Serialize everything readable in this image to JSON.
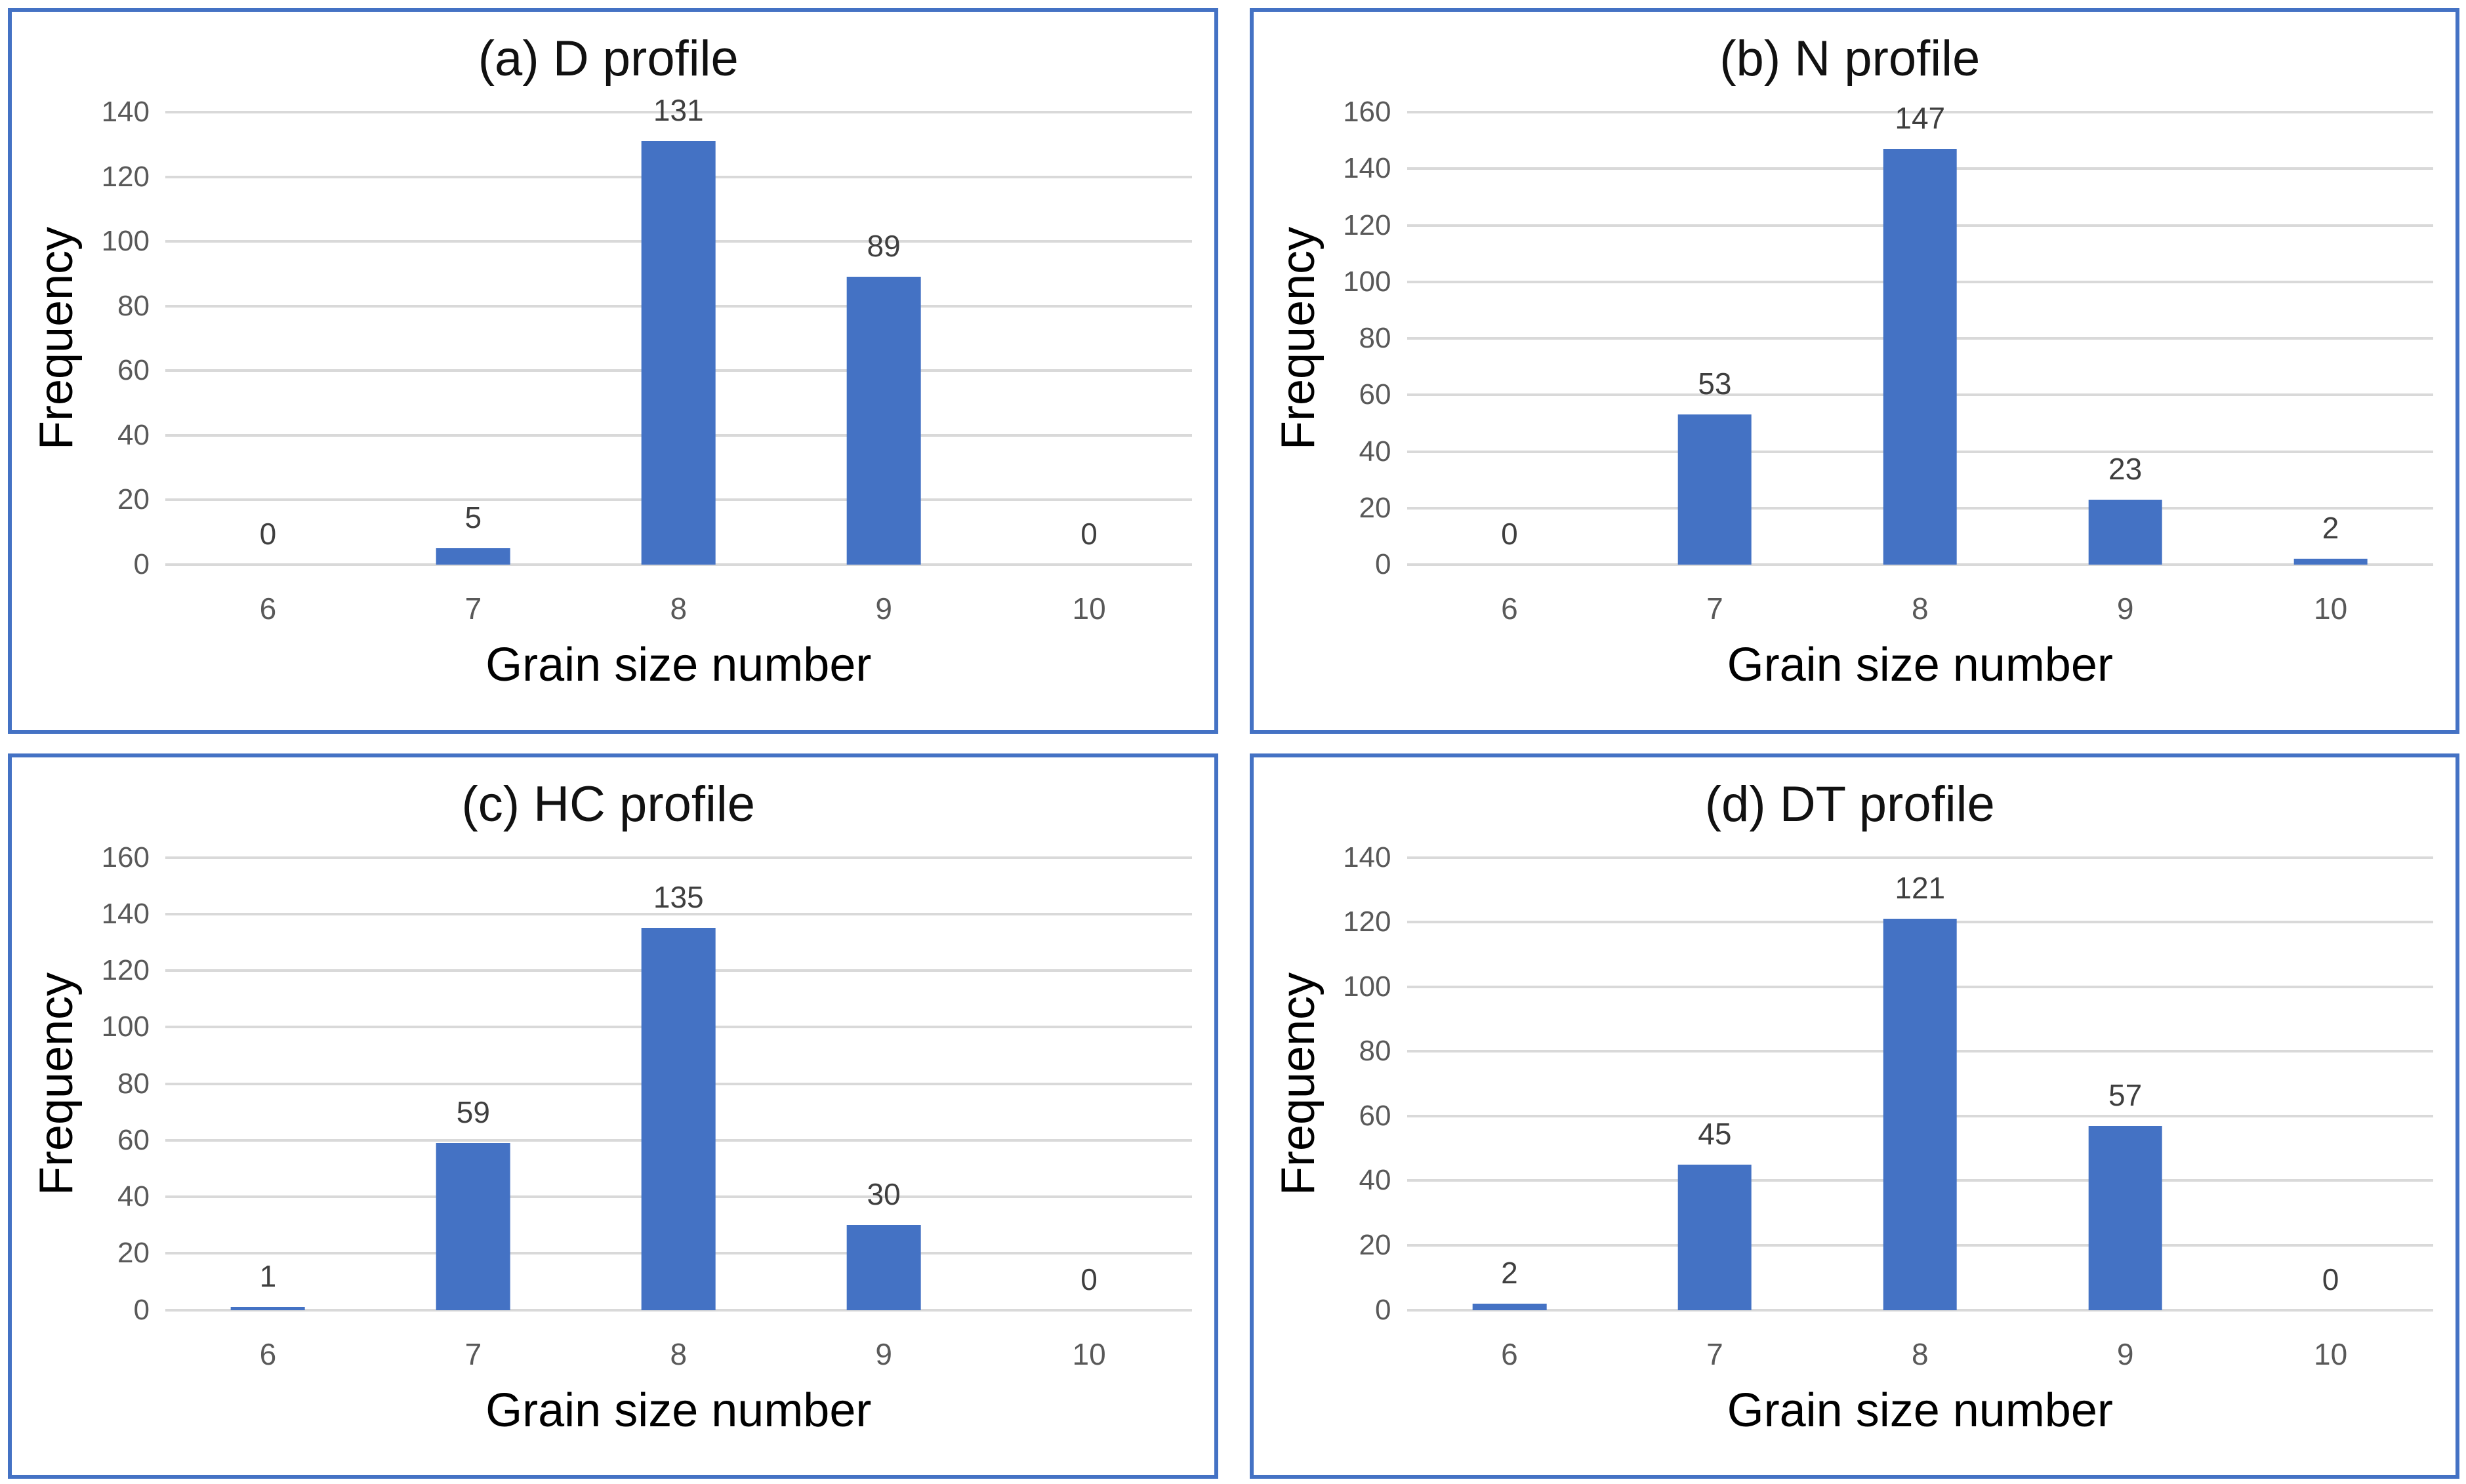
{
  "figure": {
    "background": "#ffffff",
    "panel_border_color": "#4472C4",
    "bar_color": "#4472C4",
    "gridline_color": "#d9d9d9",
    "tick_label_color": "#595959",
    "data_label_color": "#3f3f3f",
    "title_color": "#111111"
  },
  "chart_data": [
    {
      "type": "bar",
      "title": "(a) D profile",
      "xlabel": "Grain size number",
      "ylabel": "Frequency",
      "categories": [
        "6",
        "7",
        "8",
        "9",
        "10"
      ],
      "values": [
        0,
        5,
        131,
        89,
        0
      ],
      "ylim": [
        0,
        140
      ],
      "ytick_step": 20,
      "grid": true,
      "legend": false
    },
    {
      "type": "bar",
      "title": "(b) N profile",
      "xlabel": "Grain size number",
      "ylabel": "Frequency",
      "categories": [
        "6",
        "7",
        "8",
        "9",
        "10"
      ],
      "values": [
        0,
        53,
        147,
        23,
        2
      ],
      "ylim": [
        0,
        160
      ],
      "ytick_step": 20,
      "grid": true,
      "legend": false
    },
    {
      "type": "bar",
      "title": "(c) HC profile",
      "xlabel": "Grain size number",
      "ylabel": "Frequency",
      "categories": [
        "6",
        "7",
        "8",
        "9",
        "10"
      ],
      "values": [
        1,
        59,
        135,
        30,
        0
      ],
      "ylim": [
        0,
        160
      ],
      "ytick_step": 20,
      "grid": true,
      "legend": false
    },
    {
      "type": "bar",
      "title": "(d) DT profile",
      "xlabel": "Grain size number",
      "ylabel": "Frequency",
      "categories": [
        "6",
        "7",
        "8",
        "9",
        "10"
      ],
      "values": [
        2,
        45,
        121,
        57,
        0
      ],
      "ylim": [
        0,
        140
      ],
      "ytick_step": 20,
      "grid": true,
      "legend": false
    }
  ]
}
